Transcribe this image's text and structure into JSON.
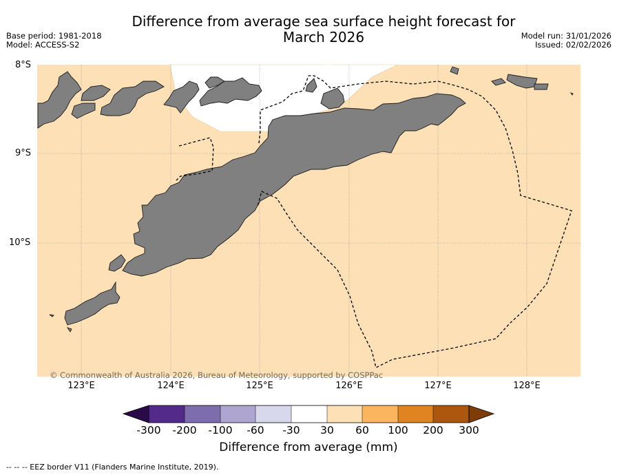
{
  "title": "Difference from average sea surface height forecast for March 2026",
  "meta_left": [
    "Base period: 1981-2018",
    "Model: ACCESS-S2"
  ],
  "meta_right": [
    "Model run: 31/01/2026",
    "Issued: 02/02/2026"
  ],
  "copyright": "© Commonwealth of Australia 2026, Bureau of Meteorology, supported by COSPPac",
  "lat_labels": [
    "8°S",
    "9°S",
    "10°S"
  ],
  "lon_labels": [
    "123°E",
    "124°E",
    "125°E",
    "126°E",
    "127°E",
    "128°E"
  ],
  "colorbar": {
    "title": "Difference from average (mm)",
    "ticks": [
      "-300",
      "-200",
      "-100",
      "-60",
      "-30",
      "30",
      "60",
      "100",
      "200",
      "300"
    ],
    "colors": [
      "#2a0b47",
      "#53298a",
      "#7d6cae",
      "#aea6d0",
      "#d8d8ec",
      "#ffffff",
      "#fde0b6",
      "#fbb55e",
      "#df8420",
      "#ad560d",
      "#7e3c07"
    ]
  },
  "map_colors": {
    "ocean": "#fde0b6",
    "land": "#808080",
    "neutral": "#ffffff"
  },
  "footer": "-- --  -- EEZ border V11 (Flanders Marine Institute, 2019)."
}
